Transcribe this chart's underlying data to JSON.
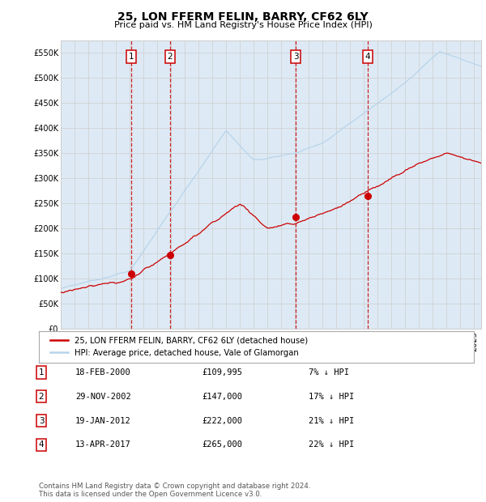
{
  "title": "25, LON FFERM FELIN, BARRY, CF62 6LY",
  "subtitle": "Price paid vs. HM Land Registry's House Price Index (HPI)",
  "ytick_values": [
    0,
    50000,
    100000,
    150000,
    200000,
    250000,
    300000,
    350000,
    400000,
    450000,
    500000,
    550000
  ],
  "ylim": [
    0,
    575000
  ],
  "xlim_start": 1995.0,
  "xlim_end": 2025.5,
  "hpi_color": "#b8d4ea",
  "price_color": "#cc0000",
  "grid_color": "#cccccc",
  "bg_color": "#ffffff",
  "plot_bg_color": "#ddeaf5",
  "sales": [
    {
      "num": 1,
      "date_year": 2000.13,
      "price": 109995,
      "label": "1"
    },
    {
      "num": 2,
      "date_year": 2002.92,
      "price": 147000,
      "label": "2"
    },
    {
      "num": 3,
      "date_year": 2012.05,
      "price": 222000,
      "label": "3"
    },
    {
      "num": 4,
      "date_year": 2017.28,
      "price": 265000,
      "label": "4"
    }
  ],
  "legend_entries": [
    "25, LON FFERM FELIN, BARRY, CF62 6LY (detached house)",
    "HPI: Average price, detached house, Vale of Glamorgan"
  ],
  "table_rows": [
    {
      "num": "1",
      "date": "18-FEB-2000",
      "price": "£109,995",
      "note": "7% ↓ HPI"
    },
    {
      "num": "2",
      "date": "29-NOV-2002",
      "price": "£147,000",
      "note": "17% ↓ HPI"
    },
    {
      "num": "3",
      "date": "19-JAN-2012",
      "price": "£222,000",
      "note": "21% ↓ HPI"
    },
    {
      "num": "4",
      "date": "13-APR-2017",
      "price": "£265,000",
      "note": "22% ↓ HPI"
    }
  ],
  "footer": "Contains HM Land Registry data © Crown copyright and database right 2024.\nThis data is licensed under the Open Government Licence v3.0.",
  "dashed_line_color": "#cc0000",
  "sale_dot_color": "#cc0000"
}
